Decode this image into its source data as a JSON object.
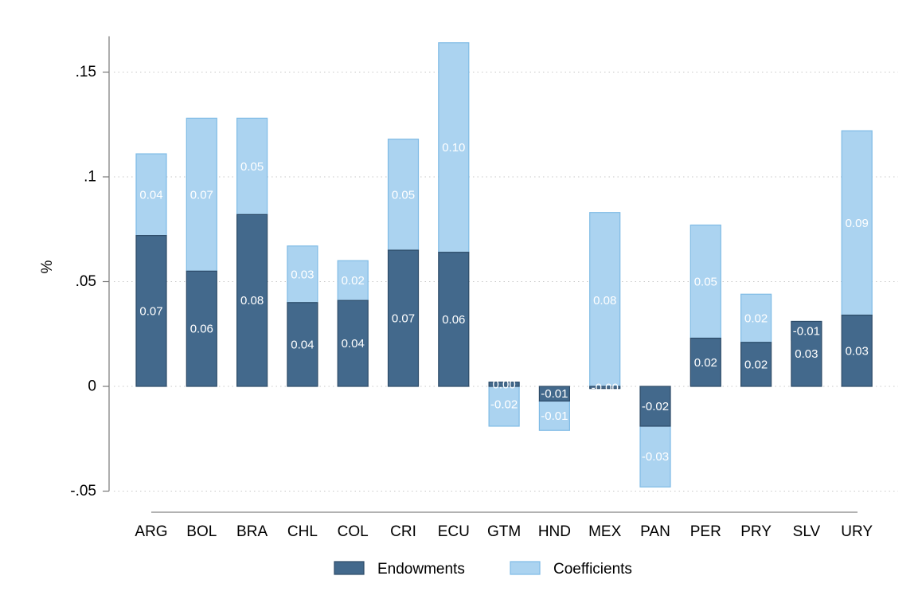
{
  "chart_data": {
    "type": "bar",
    "stacked": true,
    "title": "",
    "xlabel": "",
    "ylabel": "%",
    "ylim": [
      -0.05,
      0.15
    ],
    "yticks": [
      -0.05,
      0,
      0.05,
      0.1,
      0.15
    ],
    "ytick_labels": [
      "-.05",
      "0",
      ".05",
      ".1",
      ".15"
    ],
    "grid": true,
    "legend_position": "bottom",
    "categories": [
      "ARG",
      "BOL",
      "BRA",
      "CHL",
      "COL",
      "CRI",
      "ECU",
      "GTM",
      "HND",
      "MEX",
      "PAN",
      "PER",
      "PRY",
      "SLV",
      "URY"
    ],
    "series": [
      {
        "name": "Endowments",
        "color": "#43698c",
        "edge": "#2d4b68",
        "values": [
          0.072,
          0.055,
          0.082,
          0.04,
          0.041,
          0.065,
          0.064,
          0.002,
          -0.007,
          -0.001,
          -0.019,
          0.023,
          0.021,
          0.031,
          0.034
        ],
        "labels": [
          "0.07",
          "0.06",
          "0.08",
          "0.04",
          "0.04",
          "0.07",
          "0.06",
          "0.00",
          "-0.01",
          "-0.00",
          "-0.02",
          "0.02",
          "0.02",
          "0.03",
          "0.03"
        ]
      },
      {
        "name": "Coefficients",
        "color": "#abd3f0",
        "edge": "#7fbbe5",
        "values": [
          0.039,
          0.073,
          0.046,
          0.027,
          0.019,
          0.053,
          0.1,
          -0.021,
          -0.014,
          0.084,
          -0.029,
          0.054,
          0.023,
          -0.009,
          0.088
        ],
        "labels": [
          "0.04",
          "0.07",
          "0.05",
          "0.03",
          "0.02",
          "0.05",
          "0.10",
          "-0.02",
          "-0.01",
          "0.08",
          "-0.03",
          "0.05",
          "0.02",
          "-0.01",
          "0.09"
        ]
      }
    ]
  }
}
